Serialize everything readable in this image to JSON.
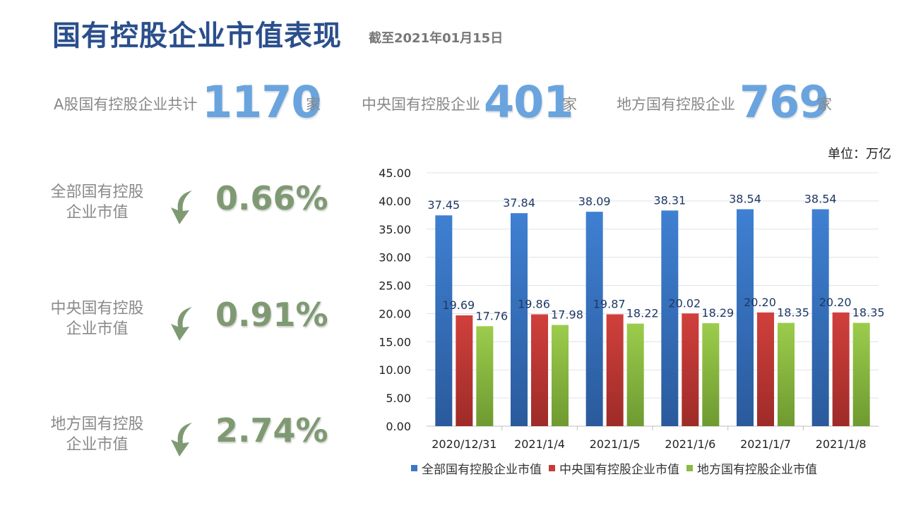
{
  "header": {
    "title": "国有控股企业市值表现",
    "subtitle": "截至2021年01月15日"
  },
  "stats": [
    {
      "label": "A股国有控股企业共计",
      "value": "1170",
      "unit": "家"
    },
    {
      "label": "中央国有控股企业",
      "value": "401",
      "unit": "家"
    },
    {
      "label": "地方国有控股企业",
      "value": "769",
      "unit": "家"
    }
  ],
  "changes": [
    {
      "label_line1": "全部国有控股",
      "label_line2": "企业市值",
      "pct": "0.66%",
      "icon": "curved-down-arrow-icon"
    },
    {
      "label_line1": "中央国有控股",
      "label_line2": "企业市值",
      "pct": "0.91%",
      "icon": "curved-down-arrow-icon"
    },
    {
      "label_line1": "地方国有控股",
      "label_line2": "企业市值",
      "pct": "2.74%",
      "icon": "curved-down-arrow-icon"
    }
  ],
  "colors": {
    "accent_blue": "#6aa4de",
    "title_blue": "#2b4f8c",
    "change_green": "#7f9a72",
    "arrow_green": "#7f9a72"
  },
  "chart_data": {
    "type": "bar",
    "unit_label": "单位：万亿",
    "categories": [
      "2020/12/31",
      "2021/1/4",
      "2021/1/5",
      "2021/1/6",
      "2021/1/7",
      "2021/1/8"
    ],
    "series": [
      {
        "name": "全部国有控股企业市值",
        "color": "#3a78c8",
        "values": [
          37.45,
          37.84,
          38.09,
          38.31,
          38.54,
          38.54
        ]
      },
      {
        "name": "中央国有控股企业市值",
        "color": "#c83a37",
        "values": [
          19.69,
          19.86,
          19.87,
          20.02,
          20.2,
          20.2
        ]
      },
      {
        "name": "地方国有控股企业市值",
        "color": "#8cbb42",
        "values": [
          17.76,
          17.98,
          18.22,
          18.29,
          18.35,
          18.35
        ]
      }
    ],
    "yticks": [
      "0.00",
      "5.00",
      "10.00",
      "15.00",
      "20.00",
      "25.00",
      "30.00",
      "35.00",
      "40.00",
      "45.00"
    ],
    "ylim": [
      0,
      45
    ],
    "grid": true,
    "legend_position": "bottom"
  }
}
